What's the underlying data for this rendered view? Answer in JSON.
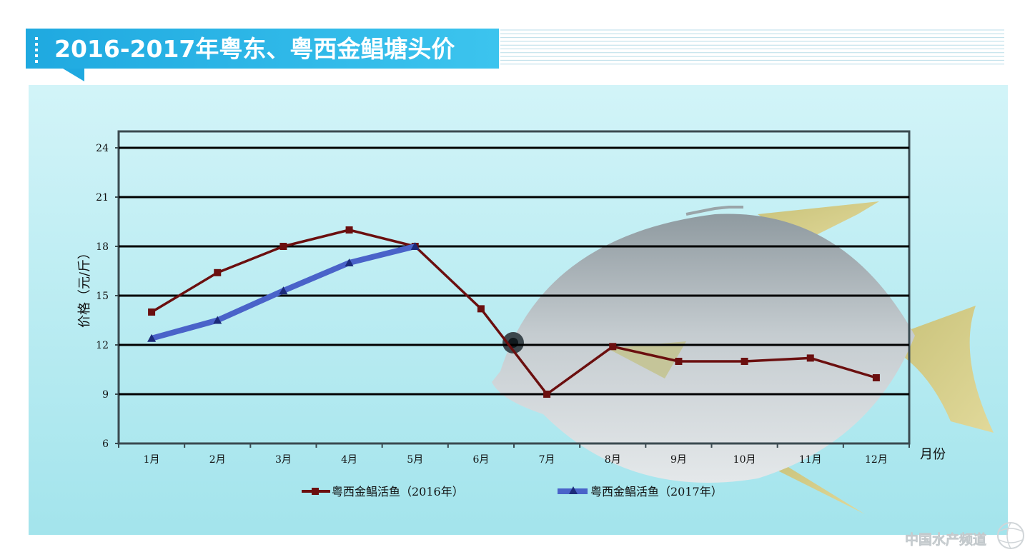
{
  "title": "2016-2017年粤东、粤西金鲳塘头价",
  "watermark": "中国水产频道",
  "colors": {
    "series_2016": "#6b0f0f",
    "series_2017": "#4a63c9",
    "title_band": "#29b3e6",
    "plot_bg_top": "#c9f1f6",
    "plot_bg_bottom": "#9fe2ea"
  },
  "chart_data": {
    "type": "line",
    "ylabel": "价格（元/斤）",
    "xlabel": "月份",
    "categories": [
      "1月",
      "2月",
      "3月",
      "4月",
      "5月",
      "6月",
      "7月",
      "8月",
      "9月",
      "10月",
      "11月",
      "12月"
    ],
    "ylim": [
      6,
      24
    ],
    "yticks": [
      "6",
      "9",
      "12",
      "15",
      "18",
      "21",
      "24"
    ],
    "grid": true,
    "legend_position": "bottom",
    "series": [
      {
        "name": "粤西金鲳活鱼（2016年）",
        "marker": "square",
        "values": [
          14,
          16.4,
          18,
          19,
          18,
          14.2,
          9,
          11.9,
          11,
          11,
          11.2,
          10
        ]
      },
      {
        "name": "粤西金鲳活鱼（2017年）",
        "marker": "triangle",
        "values": [
          12.4,
          13.5,
          15.3,
          17,
          18,
          null,
          null,
          null,
          null,
          null,
          null,
          null
        ]
      }
    ]
  }
}
